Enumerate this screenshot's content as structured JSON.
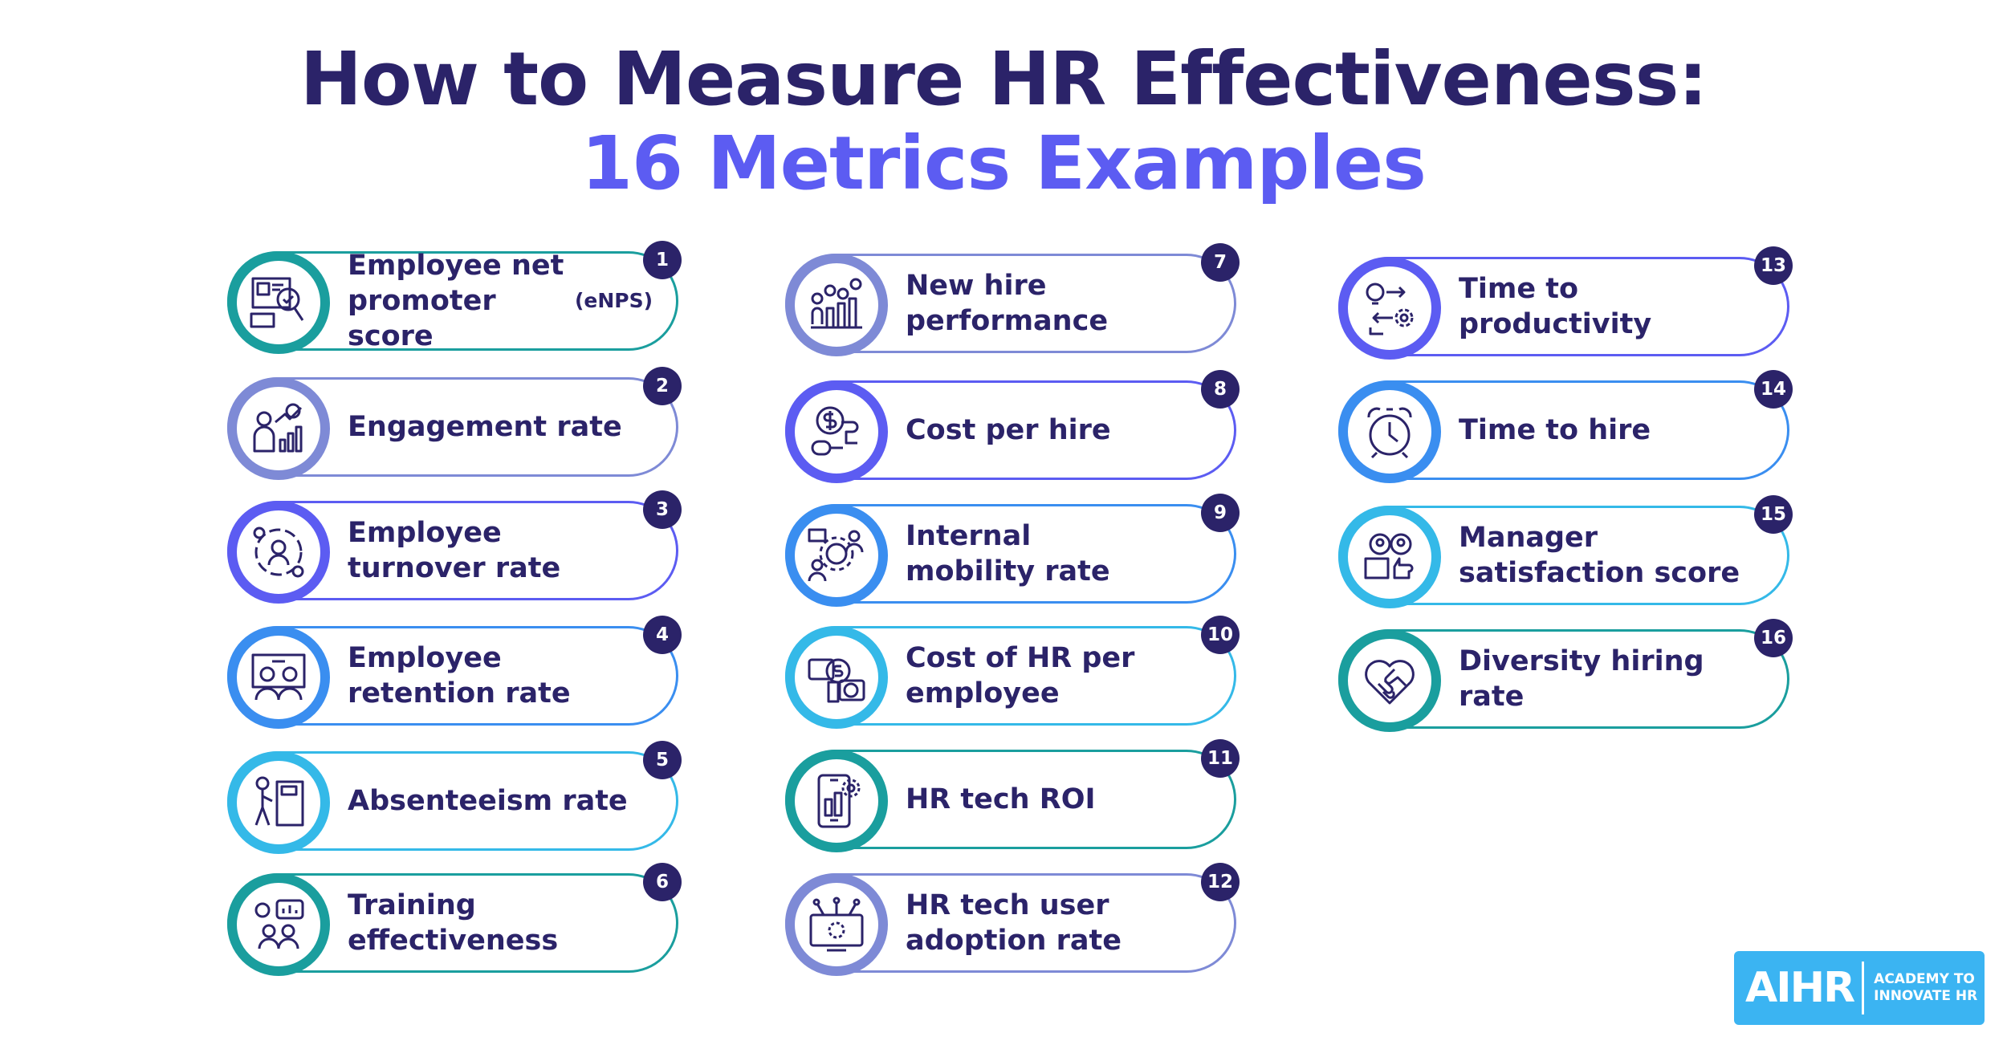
{
  "header": {
    "title_line1": "How to Measure HR Effectiveness:",
    "title_line2": "16 Metrics Examples"
  },
  "colors": {
    "title": "#2b2369",
    "accent": "#5c5cf2",
    "badge": "#2b2369",
    "logo_bg": "#3bb4f2"
  },
  "metrics": [
    {
      "number": "1",
      "label": "Employee net\npromoter score ",
      "label_small": "(eNPS)",
      "icon": "survey-magnifier-icon",
      "color": "#1a9e9e"
    },
    {
      "number": "2",
      "label": "Engagement rate",
      "icon": "growth-chart-icon",
      "color": "#7e8ad6"
    },
    {
      "number": "3",
      "label": "Employee\nturnover rate",
      "icon": "people-cycle-icon",
      "color": "#5c5cf2"
    },
    {
      "number": "4",
      "label": "Employee\nretention rate",
      "icon": "team-meeting-icon",
      "color": "#3a8ef0"
    },
    {
      "number": "5",
      "label": "Absenteeism rate",
      "icon": "person-leaving-icon",
      "color": "#34b9e8"
    },
    {
      "number": "6",
      "label": "Training\neffectiveness",
      "icon": "training-group-icon",
      "color": "#1a9e9e"
    },
    {
      "number": "7",
      "label": "New hire\nperformance",
      "icon": "performance-chart-icon",
      "color": "#7e8ad6"
    },
    {
      "number": "8",
      "label": "Cost per hire",
      "icon": "cost-hand-icon",
      "color": "#5c5cf2"
    },
    {
      "number": "9",
      "label": "Internal\nmobility rate",
      "icon": "mobility-gear-icon",
      "color": "#3a8ef0"
    },
    {
      "number": "10",
      "label": "Cost of HR per\nemployee",
      "icon": "dollar-cards-icon",
      "color": "#34b9e8"
    },
    {
      "number": "11",
      "label": "HR tech ROI",
      "icon": "smartphone-gear-icon",
      "color": "#1a9e9e"
    },
    {
      "number": "12",
      "label": "HR tech user\nadoption rate",
      "icon": "monitor-network-icon",
      "color": "#7e8ad6"
    },
    {
      "number": "13",
      "label": " Time to\nproductivity",
      "icon": "idea-process-icon",
      "color": "#5c5cf2"
    },
    {
      "number": "14",
      "label": "Time to hire",
      "icon": "alarm-clock-icon",
      "color": "#3a8ef0"
    },
    {
      "number": "15",
      "label": "Manager\nsatisfaction score",
      "icon": "manager-thumbs-icon",
      "color": "#34b9e8"
    },
    {
      "number": "16",
      "label": "Diversity hiring rate",
      "icon": "heart-handshake-icon",
      "color": "#1a9e9e"
    }
  ],
  "logo": {
    "main": "AIHR",
    "sub": "ACADEMY TO\nINNOVATE HR"
  }
}
